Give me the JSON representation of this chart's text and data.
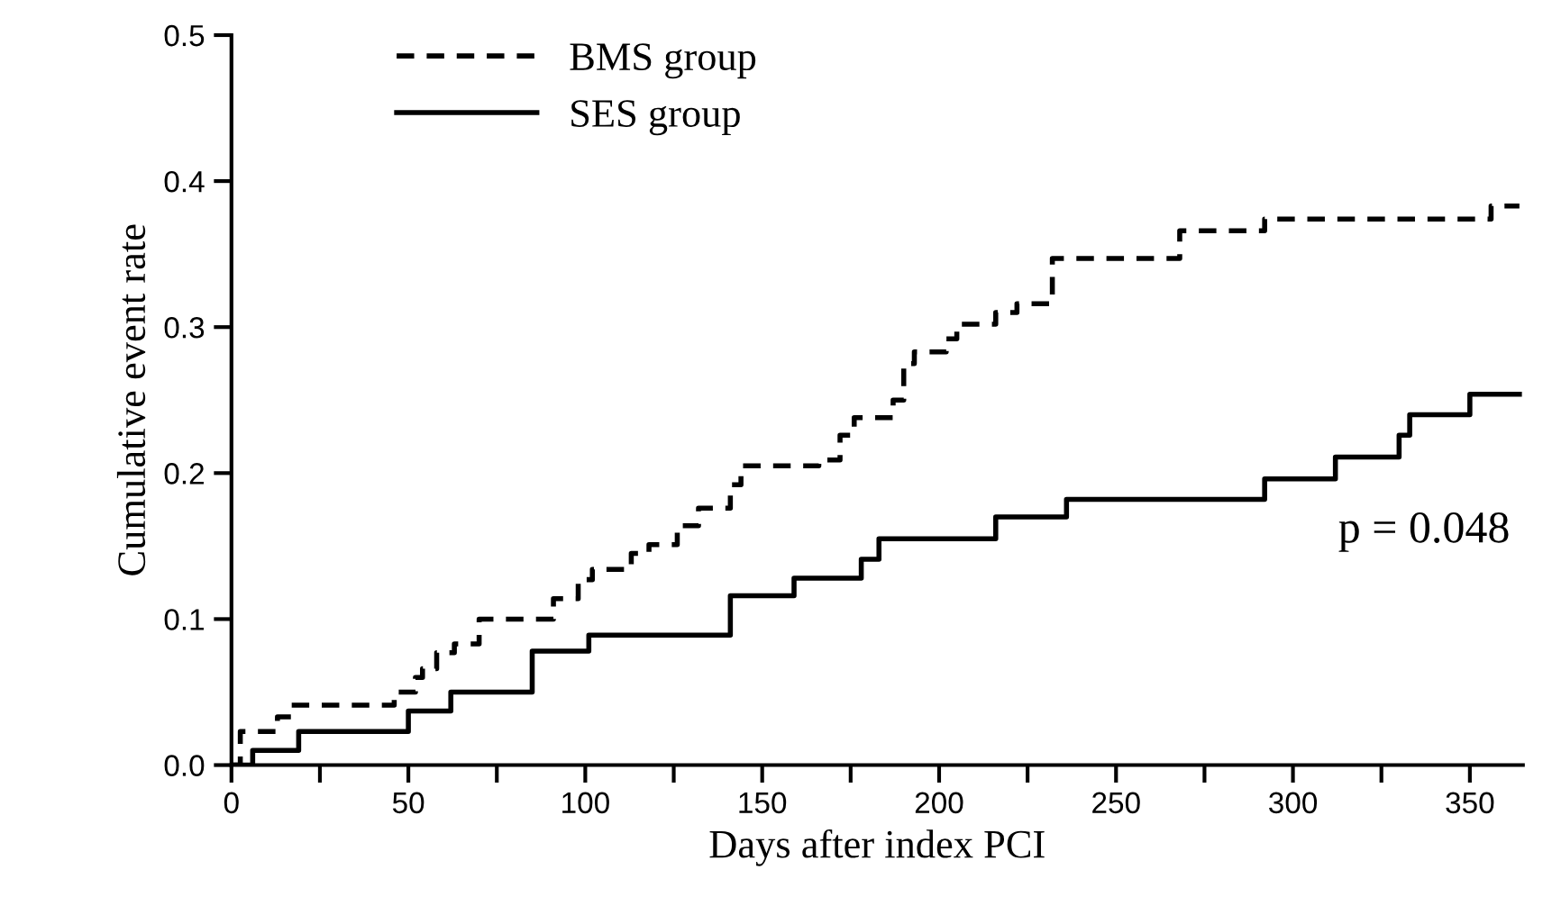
{
  "chart_data": {
    "type": "step",
    "xlabel": "Days after index PCI",
    "ylabel": "Cumulative event rate",
    "xlim": [
      0,
      365
    ],
    "ylim": [
      0.0,
      0.5
    ],
    "xticks": [
      0,
      {
        "value": 25,
        "label": null
      },
      50,
      {
        "value": 75,
        "label": null
      },
      100,
      {
        "value": 125,
        "label": null
      },
      150,
      {
        "value": 175,
        "label": null
      },
      200,
      {
        "value": 225,
        "label": null
      },
      250,
      {
        "value": 275,
        "label": null
      },
      300,
      {
        "value": 325,
        "label": null
      },
      350
    ],
    "yticks": [
      {
        "value": 0,
        "label": "0.0"
      },
      0.1,
      0.2,
      0.3,
      0.4,
      0.5
    ],
    "grid": false,
    "legend": "top left",
    "marker": "none",
    "series": [
      {
        "name": "BMS group",
        "color": "#000000",
        "line_style": "dashed",
        "x": [
          0,
          2.5,
          13,
          17,
          46,
          52,
          54,
          58,
          63,
          70,
          91,
          98,
          102,
          113,
          118,
          126,
          132,
          141,
          144,
          166,
          172,
          176,
          187,
          190,
          193,
          202,
          205,
          216,
          222,
          232,
          268,
          292,
          356,
          364
        ],
        "values": [
          0,
          0.023,
          0.033,
          0.041,
          0.05,
          0.06,
          0.066,
          0.077,
          0.083,
          0.1,
          0.114,
          0.127,
          0.134,
          0.145,
          0.151,
          0.164,
          0.176,
          0.192,
          0.205,
          0.209,
          0.226,
          0.238,
          0.25,
          0.275,
          0.283,
          0.292,
          0.302,
          0.31,
          0.316,
          0.347,
          0.366,
          0.374,
          0.383,
          0.383
        ]
      },
      {
        "name": "SES group",
        "color": "#000000",
        "line_style": "solid",
        "x": [
          0,
          6,
          19,
          50,
          62,
          85,
          101,
          141,
          159,
          178,
          183,
          216,
          236,
          292,
          312,
          330,
          333,
          350,
          364
        ],
        "values": [
          0,
          0.01,
          0.023,
          0.037,
          0.05,
          0.078,
          0.089,
          0.116,
          0.128,
          0.141,
          0.155,
          0.17,
          0.182,
          0.196,
          0.211,
          0.226,
          0.24,
          0.254,
          0.254
        ]
      }
    ],
    "annotations": [
      "p = 0.048"
    ]
  }
}
